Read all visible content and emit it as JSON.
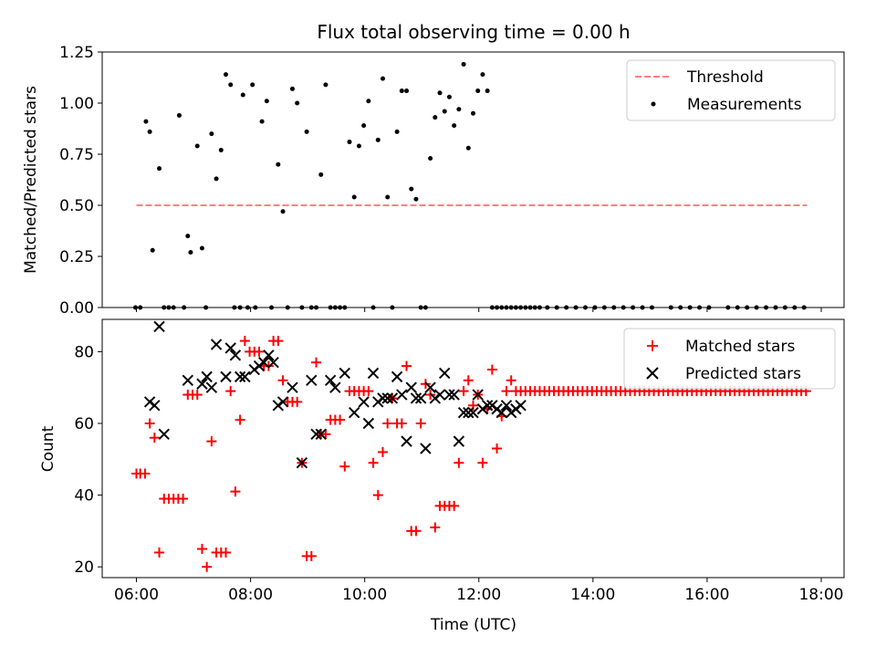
{
  "figure": {
    "title": "Flux total observing time = 0.00 h",
    "xlabel": "Time (UTC)"
  },
  "colors": {
    "threshold": "#ff7f7f",
    "measurements": "#000000",
    "matched": "#ff0000",
    "predicted": "#000000"
  },
  "chart_data": [
    {
      "type": "scatter",
      "ylabel": "Matched/Predicted stars",
      "xlim": [
        "05:24",
        "18:24"
      ],
      "ylim": [
        0,
        1.25
      ],
      "x_ticks": [
        "06:00",
        "08:00",
        "10:00",
        "12:00",
        "14:00",
        "16:00",
        "18:00"
      ],
      "y_ticks": [
        "0.00",
        "0.25",
        "0.50",
        "0.75",
        "1.00",
        "1.25"
      ],
      "legend_position": "top-right",
      "threshold": {
        "name": "Threshold",
        "value": 0.5,
        "x": [
          "06:00",
          "17:45"
        ],
        "style": "dashed"
      },
      "series": [
        {
          "name": "Measurements",
          "x": [
            "05:59",
            "06:04",
            "06:10",
            "06:14",
            "06:17",
            "06:24",
            "06:29",
            "06:34",
            "06:39",
            "06:45",
            "06:50",
            "06:54",
            "06:57",
            "07:04",
            "07:09",
            "07:13",
            "07:19",
            "07:24",
            "07:29",
            "07:34",
            "07:39",
            "07:43",
            "07:49",
            "07:52",
            "07:57",
            "08:02",
            "08:05",
            "08:12",
            "08:17",
            "08:22",
            "08:29",
            "08:34",
            "08:39",
            "08:44",
            "08:49",
            "08:54",
            "08:59",
            "09:04",
            "09:09",
            "09:14",
            "09:19",
            "09:24",
            "09:29",
            "09:34",
            "09:39",
            "09:44",
            "09:49",
            "09:54",
            "09:59",
            "10:04",
            "10:09",
            "10:14",
            "10:19",
            "10:24",
            "10:29",
            "10:34",
            "10:39",
            "10:44",
            "10:49",
            "10:54",
            "10:59",
            "11:04",
            "11:09",
            "11:14",
            "11:19",
            "11:24",
            "11:29",
            "11:34",
            "11:39",
            "11:44",
            "11:49",
            "11:54",
            "11:59",
            "12:04",
            "12:09",
            "12:14",
            "12:19",
            "12:24",
            "12:29",
            "12:34",
            "12:39",
            "12:44",
            "12:49",
            "12:54",
            "12:59",
            "13:04",
            "13:12",
            "13:22",
            "13:32",
            "13:42",
            "13:52",
            "14:02",
            "14:12",
            "14:22",
            "14:32",
            "14:42",
            "14:52",
            "15:02",
            "15:22",
            "15:32",
            "15:42",
            "15:52",
            "16:02",
            "16:22",
            "16:32",
            "16:42",
            "16:52",
            "17:02",
            "17:12",
            "17:22",
            "17:32",
            "17:42"
          ],
          "y": [
            0,
            0,
            0.91,
            0.86,
            0.28,
            0.68,
            0,
            0,
            0,
            0.94,
            0,
            0.35,
            0.27,
            0.79,
            0.29,
            0,
            0.85,
            0.63,
            0.77,
            1.14,
            1.09,
            0,
            0,
            1.04,
            0,
            1.09,
            0,
            0.91,
            1.01,
            0,
            0.7,
            0.47,
            0,
            1.07,
            1.0,
            0,
            0.86,
            0,
            0,
            0.65,
            1.09,
            0,
            0,
            0,
            0,
            0.81,
            0.54,
            0.79,
            0.89,
            1.01,
            0,
            0.82,
            1.12,
            0.54,
            0,
            0.86,
            1.06,
            1.06,
            0.58,
            0.53,
            0,
            0,
            0.73,
            0.93,
            1.05,
            0.96,
            1.03,
            0.89,
            0.97,
            1.19,
            0.78,
            0.95,
            1.06,
            1.14,
            1.06,
            0,
            0,
            0,
            0,
            0,
            0,
            0,
            0,
            0,
            0,
            0,
            0,
            0,
            0,
            0,
            0,
            0,
            0,
            0,
            0,
            0,
            0,
            0,
            0,
            0,
            0,
            0,
            0,
            0,
            0,
            0,
            0,
            0,
            0,
            0,
            0,
            0
          ]
        }
      ]
    },
    {
      "type": "scatter",
      "ylabel": "Count",
      "xlim": [
        "05:24",
        "18:24"
      ],
      "ylim": [
        17,
        89
      ],
      "x_ticks": [
        "06:00",
        "08:00",
        "10:00",
        "12:00",
        "14:00",
        "16:00",
        "18:00"
      ],
      "y_ticks": [
        "20",
        "40",
        "60",
        "80"
      ],
      "legend_position": "top-right",
      "series": [
        {
          "name": "Matched stars",
          "marker": "plus",
          "x": [
            "06:00",
            "06:04",
            "06:09",
            "06:14",
            "06:19",
            "06:24",
            "06:29",
            "06:34",
            "06:39",
            "06:44",
            "06:49",
            "06:54",
            "06:59",
            "07:04",
            "07:09",
            "07:14",
            "07:19",
            "07:24",
            "07:29",
            "07:34",
            "07:39",
            "07:44",
            "07:49",
            "07:54",
            "07:59",
            "08:04",
            "08:09",
            "08:14",
            "08:19",
            "08:24",
            "08:29",
            "08:34",
            "08:39",
            "08:44",
            "08:49",
            "08:54",
            "08:59",
            "09:04",
            "09:09",
            "09:14",
            "09:19",
            "09:24",
            "09:29",
            "09:34",
            "09:39",
            "09:44",
            "09:49",
            "09:54",
            "09:59",
            "10:04",
            "10:09",
            "10:14",
            "10:19",
            "10:24",
            "10:29",
            "10:34",
            "10:39",
            "10:44",
            "10:49",
            "10:54",
            "10:59",
            "11:04",
            "11:09",
            "11:14",
            "11:19",
            "11:24",
            "11:29",
            "11:34",
            "11:39",
            "11:44",
            "11:49",
            "11:54",
            "11:59",
            "12:04",
            "12:09",
            "12:14",
            "12:19",
            "12:24",
            "12:29",
            "12:34",
            "12:39",
            "12:44",
            "12:49",
            "12:54",
            "12:59",
            "13:04",
            "13:09",
            "13:14",
            "13:19",
            "13:24",
            "13:29",
            "13:34",
            "13:39",
            "13:44",
            "13:49",
            "13:54",
            "13:59",
            "14:04",
            "14:09",
            "14:14",
            "14:19",
            "14:24",
            "14:29",
            "14:34",
            "14:39",
            "14:44",
            "14:49",
            "14:54",
            "14:59",
            "15:04",
            "15:09",
            "15:14",
            "15:19",
            "15:24",
            "15:29",
            "15:34",
            "15:39",
            "15:44",
            "15:49",
            "15:54",
            "15:59",
            "16:04",
            "16:09",
            "16:14",
            "16:19",
            "16:24",
            "16:29",
            "16:34",
            "16:39",
            "16:44",
            "16:49",
            "16:54",
            "16:59",
            "17:04",
            "17:09",
            "17:14",
            "17:19",
            "17:24",
            "17:29",
            "17:34",
            "17:39",
            "17:44"
          ],
          "y": [
            46,
            46,
            46,
            60,
            56,
            24,
            39,
            39,
            39,
            39,
            39,
            68,
            68,
            68,
            25,
            20,
            55,
            24,
            24,
            24,
            69,
            41,
            61,
            83,
            80,
            80,
            80,
            76,
            76,
            83,
            83,
            72,
            66,
            66,
            66,
            49,
            23,
            23,
            77,
            57,
            57,
            61,
            61,
            61,
            48,
            69,
            69,
            69,
            69,
            69,
            49,
            40,
            52,
            60,
            67,
            60,
            60,
            76,
            30,
            30,
            60,
            71,
            68,
            31,
            37,
            37,
            37,
            37,
            49,
            69,
            72,
            65,
            68,
            49,
            64,
            75,
            53,
            62,
            69,
            72,
            69,
            69,
            69,
            69,
            69,
            69,
            69,
            69,
            69,
            69,
            69,
            69,
            69,
            69,
            69,
            69,
            69,
            69,
            69,
            69,
            69,
            69,
            69,
            69,
            69,
            69,
            69,
            69,
            69,
            69,
            69,
            69,
            69,
            69,
            69,
            69,
            69,
            69,
            69,
            69,
            69,
            69,
            69,
            69,
            69,
            69,
            69,
            69,
            69,
            69,
            69,
            69,
            69,
            69,
            69,
            69,
            69,
            69,
            69,
            69,
            69,
            69
          ]
        },
        {
          "name": "Predicted stars",
          "marker": "x",
          "x": [
            "06:14",
            "06:19",
            "06:24",
            "06:29",
            "06:54",
            "07:09",
            "07:14",
            "07:19",
            "07:24",
            "07:34",
            "07:39",
            "07:44",
            "07:49",
            "07:54",
            "08:04",
            "08:09",
            "08:14",
            "08:19",
            "08:24",
            "08:29",
            "08:34",
            "08:44",
            "08:54",
            "09:04",
            "09:09",
            "09:14",
            "09:24",
            "09:29",
            "09:39",
            "09:49",
            "09:59",
            "10:04",
            "10:09",
            "10:14",
            "10:19",
            "10:24",
            "10:29",
            "10:34",
            "10:39",
            "10:44",
            "10:49",
            "10:54",
            "10:59",
            "11:04",
            "11:09",
            "11:14",
            "11:19",
            "11:24",
            "11:29",
            "11:34",
            "11:39",
            "11:44",
            "11:49",
            "11:54",
            "11:59",
            "12:04",
            "12:09",
            "12:14",
            "12:19",
            "12:24",
            "12:29",
            "12:34",
            "12:39",
            "12:44"
          ],
          "y": [
            66,
            65,
            87,
            57,
            72,
            71,
            73,
            70,
            82,
            73,
            81,
            79,
            73,
            73,
            75,
            76,
            77,
            79,
            77,
            65,
            66,
            70,
            49,
            72,
            57,
            57,
            72,
            70,
            74,
            63,
            66,
            60,
            74,
            66,
            67,
            67,
            67,
            73,
            68,
            55,
            70,
            67,
            67,
            53,
            70,
            67,
            68,
            74,
            68,
            68,
            55,
            63,
            63,
            63,
            68,
            64,
            65,
            65,
            64,
            63,
            65,
            63,
            64,
            65
          ]
        }
      ]
    }
  ]
}
